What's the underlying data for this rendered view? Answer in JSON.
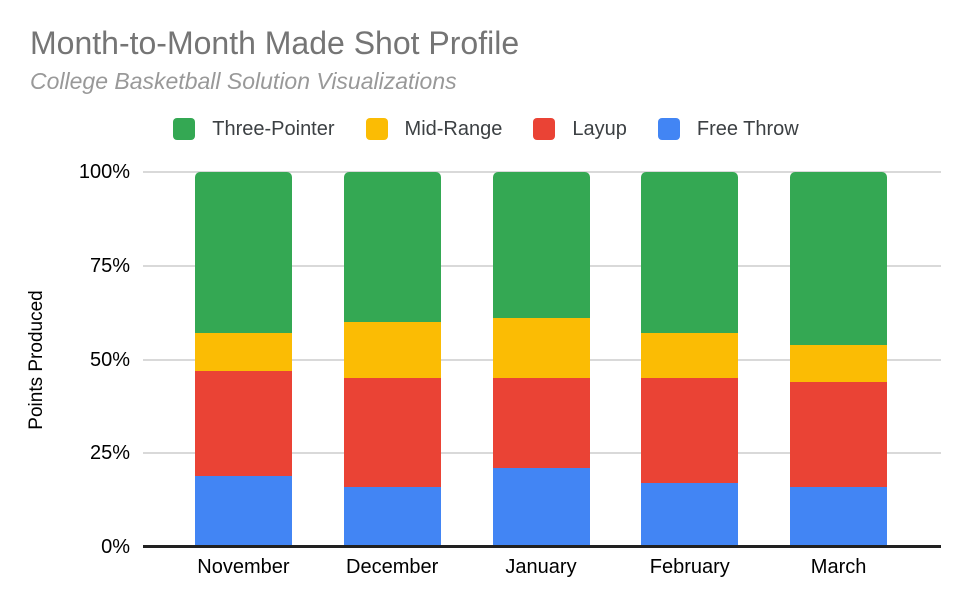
{
  "title": "Month-to-Month Made Shot Profile",
  "subtitle": "College Basketball Solution Visualizations",
  "theme": {
    "title_color": "#757575",
    "subtitle_color": "#999999",
    "legend_text_color": "#3c4043",
    "axis_text_color": "#000000",
    "grid_color": "#d9d9d9",
    "axis_line_color": "#212121",
    "background_color": "#ffffff"
  },
  "chart_data": {
    "type": "bar",
    "subtype": "stacked-percent",
    "title": "Month-to-Month Made Shot Profile",
    "subtitle": "College Basketball Solution Visualizations",
    "xlabel": "",
    "ylabel": "Points Produced",
    "categories": [
      "November",
      "December",
      "January",
      "February",
      "March"
    ],
    "series": [
      {
        "name": "Three-Pointer",
        "color": "#34A853",
        "values": [
          43,
          40,
          39,
          43,
          46
        ]
      },
      {
        "name": "Mid-Range",
        "color": "#FBBC04",
        "values": [
          10,
          15,
          16,
          12,
          10
        ]
      },
      {
        "name": "Layup",
        "color": "#EA4335",
        "values": [
          28,
          29,
          24,
          28,
          28
        ]
      },
      {
        "name": "Free Throw",
        "color": "#4285F4",
        "values": [
          19,
          16,
          21,
          17,
          16
        ]
      }
    ],
    "stack_order_bottom_to_top": [
      "Free Throw",
      "Layup",
      "Mid-Range",
      "Three-Pointer"
    ],
    "yticks": [
      "0%",
      "25%",
      "50%",
      "75%",
      "100%"
    ],
    "ylim": [
      0,
      100
    ],
    "grid": true,
    "legend_position": "top"
  }
}
